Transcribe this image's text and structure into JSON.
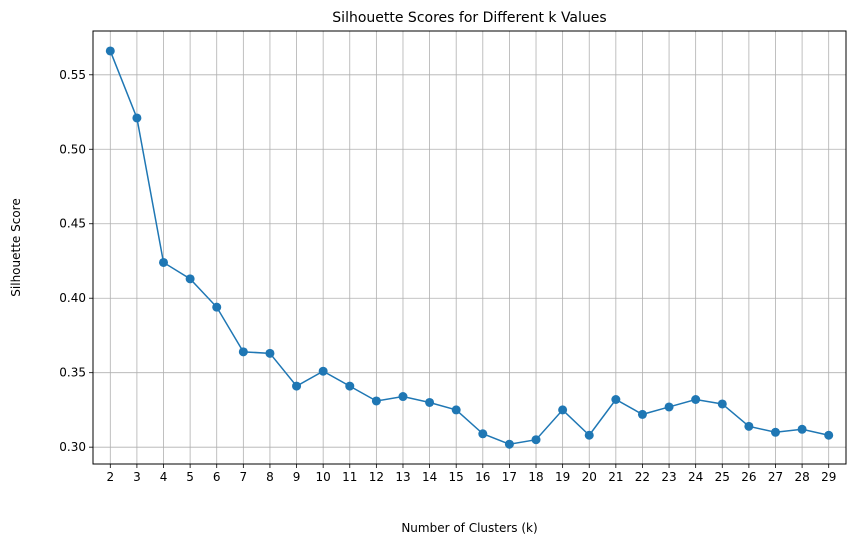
{
  "chart_data": {
    "type": "line",
    "title": "Silhouette Scores for Different k Values",
    "xlabel": "Number of Clusters (k)",
    "ylabel": "Silhouette Score",
    "x": [
      2,
      3,
      4,
      5,
      6,
      7,
      8,
      9,
      10,
      11,
      12,
      13,
      14,
      15,
      16,
      17,
      18,
      19,
      20,
      21,
      22,
      23,
      24,
      25,
      26,
      27,
      28,
      29
    ],
    "series": [
      {
        "values": [
          0.566,
          0.521,
          0.424,
          0.413,
          0.394,
          0.364,
          0.363,
          0.341,
          0.351,
          0.341,
          0.331,
          0.334,
          0.33,
          0.325,
          0.309,
          0.302,
          0.305,
          0.325,
          0.308,
          0.332,
          0.322,
          0.327,
          0.332,
          0.329,
          0.314,
          0.31,
          0.312,
          0.308
        ],
        "color": "#1f77b4",
        "marker": "circle"
      }
    ],
    "xlim": [
      1.35,
      29.65
    ],
    "ylim": [
      0.2887,
      0.5794
    ],
    "yticks": [
      "0.30",
      "0.35",
      "0.40",
      "0.45",
      "0.50",
      "0.55"
    ],
    "ytick_values": [
      0.3,
      0.35,
      0.4,
      0.45,
      0.5,
      0.55
    ],
    "xticks": [
      "2",
      "3",
      "4",
      "5",
      "6",
      "7",
      "8",
      "9",
      "10",
      "11",
      "12",
      "13",
      "14",
      "15",
      "16",
      "17",
      "18",
      "19",
      "20",
      "21",
      "22",
      "23",
      "24",
      "25",
      "26",
      "27",
      "28",
      "29"
    ],
    "grid": true,
    "legend": false
  }
}
